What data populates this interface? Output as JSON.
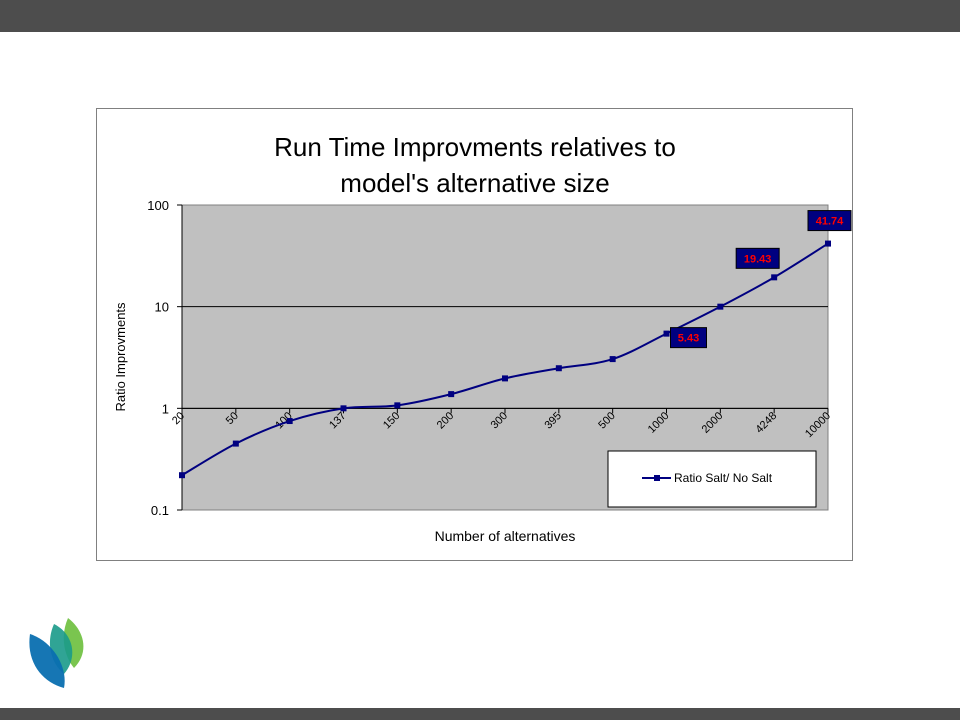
{
  "slide": {
    "colors": {
      "bars": "#4d4d4d",
      "background": "#ffffff"
    },
    "logo": {
      "icon": "leaf-logo-icon",
      "colors": [
        "#0a6fb0",
        "#1a9a8a",
        "#6cbf3c"
      ]
    }
  },
  "chart_data": {
    "type": "line",
    "title_lines": [
      "Run Time Improvments relatives to",
      "model's alternative size"
    ],
    "xlabel": "Number of alternatives",
    "ylabel": "Ratio Improvments",
    "y_scale": "log",
    "ylim": [
      0.1,
      100
    ],
    "y_ticks": [
      "0.1",
      "1",
      "10",
      "100"
    ],
    "grid": "horizontal major",
    "plot_background": "#c0c0c0",
    "categories": [
      "20",
      "50",
      "100",
      "137",
      "150",
      "200",
      "300",
      "395",
      "500",
      "1000",
      "2000",
      "4248",
      "10000"
    ],
    "series": [
      {
        "name": "Ratio Salt/ No Salt",
        "color": "#000080",
        "values": [
          0.22,
          0.45,
          0.75,
          1.0,
          1.07,
          1.38,
          1.97,
          2.48,
          3.05,
          5.43,
          10.0,
          19.43,
          41.74
        ]
      }
    ],
    "data_labels": [
      {
        "index": 9,
        "text": "5.43"
      },
      {
        "index": 11,
        "text": "19.43"
      },
      {
        "index": 12,
        "text": "41.74"
      }
    ],
    "data_label_style": {
      "fill": "#000080",
      "text": "#ff0000"
    },
    "legend": {
      "position": "bottom-right inside plot",
      "entries": [
        "Ratio Salt/ No Salt"
      ]
    }
  }
}
